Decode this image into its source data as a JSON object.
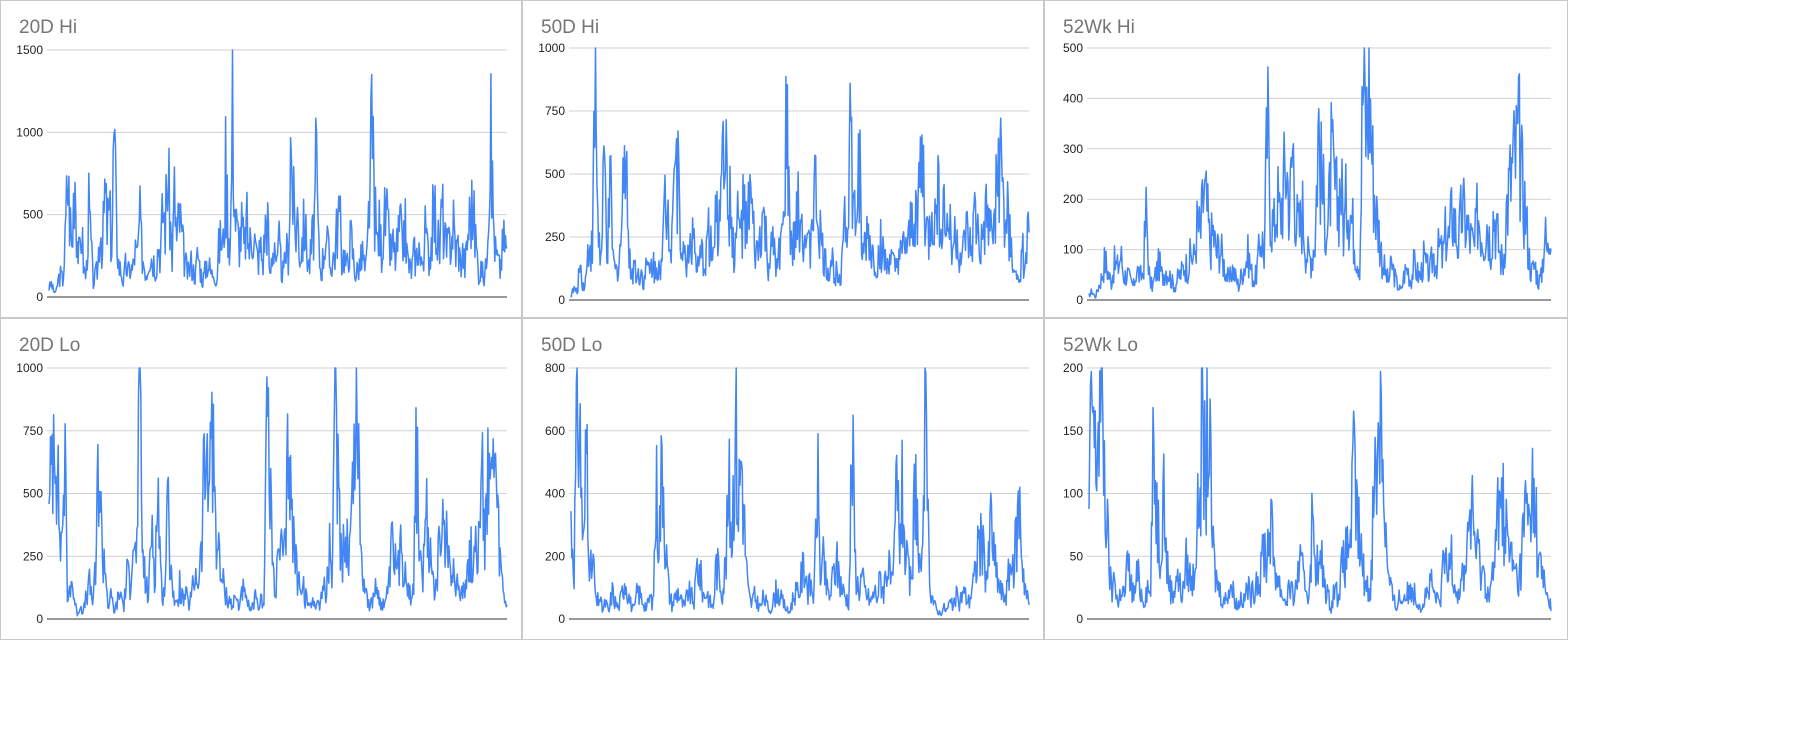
{
  "colors": {
    "series": "#4285f4",
    "grid": "#d0d0d0",
    "axis": "#333333",
    "title": "#757575"
  },
  "chart_data": [
    {
      "type": "line",
      "title": "20D Hi",
      "ylim": [
        0,
        1500
      ],
      "yticks": [
        0,
        500,
        1000,
        1500
      ],
      "grid": true,
      "n_points": 600,
      "series": [
        {
          "values": [
            60,
            90,
            40,
            30,
            120,
            150,
            110,
            380,
            820,
            540,
            300,
            980,
            420,
            250,
            480,
            180,
            140,
            600,
            380,
            90,
            140,
            200,
            520,
            300,
            700,
            480,
            560,
            350,
            1120,
            480,
            210,
            180,
            90,
            220,
            160,
            200,
            180,
            320,
            250,
            540,
            300,
            220,
            160,
            300,
            280,
            250,
            200,
            360,
            300,
            600,
            500,
            860,
            560,
            260,
            700,
            350,
            560,
            420,
            280,
            200,
            150,
            240,
            180,
            150,
            300,
            200,
            110,
            160,
            250,
            200,
            150,
            200,
            90,
            320,
            400,
            350,
            880,
            520,
            320,
            1330,
            560,
            420,
            380,
            480,
            300,
            520,
            320,
            400,
            480,
            300,
            260,
            340,
            220,
            480,
            550,
            120,
            300,
            400,
            200,
            350,
            180,
            160,
            320,
            280,
            1080,
            650,
            420,
            560,
            260,
            400,
            500,
            300,
            200,
            350,
            480,
            900,
            320,
            160,
            280,
            450,
            320,
            200,
            260,
            300,
            500,
            560,
            250,
            300,
            180,
            350,
            400,
            250,
            150,
            200,
            230,
            300,
            150,
            300,
            800,
            1100,
            640,
            350,
            480,
            320,
            480,
            560,
            400,
            300,
            340,
            260,
            360,
            480,
            300,
            520,
            280,
            200,
            180,
            300,
            250,
            400,
            180,
            320,
            450,
            280,
            300,
            500,
            560,
            400,
            300,
            620,
            420,
            300,
            350,
            400,
            500,
            300,
            360,
            220,
            300,
            200,
            400,
            550,
            600,
            480,
            300,
            140,
            200,
            120,
            200,
            760,
            1050,
            600,
            300,
            250,
            180,
            320,
            400,
            300
          ]
        }
      ]
    },
    {
      "type": "line",
      "title": "50D Hi",
      "ylim": [
        0,
        1000
      ],
      "yticks": [
        0,
        250,
        500,
        750,
        1000
      ],
      "grid": true,
      "n_points": 600,
      "series": [
        {
          "values": [
            20,
            50,
            30,
            170,
            60,
            100,
            280,
            200,
            940,
            300,
            150,
            600,
            200,
            480,
            150,
            120,
            200,
            380,
            950,
            180,
            120,
            160,
            100,
            130,
            80,
            150,
            120,
            180,
            100,
            200,
            150,
            420,
            380,
            300,
            660,
            550,
            400,
            200,
            150,
            250,
            300,
            180,
            120,
            200,
            150,
            300,
            250,
            180,
            380,
            300,
            1000,
            550,
            480,
            300,
            200,
            350,
            300,
            400,
            250,
            470,
            300,
            180,
            230,
            350,
            300,
            140,
            200,
            230,
            100,
            300,
            250,
            800,
            350,
            200,
            280,
            400,
            350,
            300,
            200,
            250,
            500,
            420,
            300,
            200,
            150,
            120,
            180,
            100,
            150,
            120,
            400,
            300,
            780,
            400,
            300,
            650,
            150,
            250,
            300,
            200,
            180,
            140,
            250,
            200,
            120,
            200,
            150,
            120,
            200,
            170,
            250,
            200,
            300,
            350,
            400,
            500,
            580,
            300,
            250,
            400,
            300,
            500,
            350,
            400,
            280,
            350,
            230,
            300,
            200,
            150,
            300,
            250,
            200,
            350,
            300,
            200,
            280,
            350,
            300,
            250,
            480,
            560,
            540,
            280,
            400,
            200,
            150,
            80,
            100,
            200,
            160,
            350
          ]
        }
      ]
    },
    {
      "type": "line",
      "title": "52Wk Hi",
      "ylim": [
        0,
        500
      ],
      "yticks": [
        0,
        100,
        200,
        300,
        400,
        500
      ],
      "grid": true,
      "n_points": 600,
      "series": [
        {
          "values": [
            10,
            20,
            5,
            30,
            50,
            90,
            60,
            40,
            80,
            70,
            100,
            50,
            60,
            40,
            30,
            70,
            50,
            60,
            200,
            40,
            30,
            60,
            80,
            50,
            70,
            60,
            40,
            30,
            50,
            60,
            80,
            70,
            100,
            90,
            170,
            140,
            240,
            200,
            120,
            150,
            100,
            120,
            90,
            60,
            40,
            70,
            50,
            30,
            60,
            80,
            100,
            60,
            40,
            80,
            150,
            100,
            400,
            200,
            150,
            230,
            180,
            250,
            300,
            200,
            350,
            180,
            150,
            200,
            120,
            90,
            100,
            140,
            400,
            250,
            200,
            150,
            300,
            250,
            200,
            270,
            150,
            240,
            200,
            150,
            100,
            80,
            500,
            380,
            480,
            300,
            200,
            150,
            90,
            60,
            40,
            80,
            50,
            30,
            20,
            60,
            70,
            40,
            80,
            60,
            50,
            90,
            70,
            60,
            100,
            80,
            120,
            90,
            150,
            130,
            200,
            160,
            120,
            200,
            180,
            150,
            130,
            110,
            200,
            160,
            140,
            180,
            120,
            200,
            150,
            100,
            80,
            200,
            250,
            300,
            320,
            350,
            250,
            200,
            100,
            60,
            80,
            40,
            50,
            150,
            100,
            200
          ]
        }
      ]
    },
    {
      "type": "line",
      "title": "20D Lo",
      "ylim": [
        0,
        1000
      ],
      "yticks": [
        0,
        250,
        500,
        750,
        1000
      ],
      "grid": true,
      "n_points": 600,
      "series": [
        {
          "values": [
            400,
            760,
            1000,
            500,
            300,
            740,
            50,
            200,
            100,
            20,
            60,
            30,
            100,
            150,
            80,
            200,
            770,
            300,
            250,
            50,
            100,
            30,
            80,
            120,
            50,
            200,
            150,
            450,
            200,
            1000,
            300,
            150,
            100,
            450,
            200,
            580,
            150,
            100,
            480,
            300,
            100,
            50,
            150,
            80,
            100,
            60,
            120,
            200,
            180,
            300,
            750,
            500,
            940,
            600,
            350,
            200,
            150,
            100,
            80,
            60,
            100,
            50,
            150,
            80,
            60,
            30,
            100,
            50,
            80,
            100,
            1000,
            500,
            200,
            150,
            350,
            250,
            300,
            920,
            400,
            300,
            150,
            200,
            100,
            80,
            50,
            100,
            60,
            80,
            150,
            100,
            300,
            200,
            1000,
            500,
            300,
            400,
            300,
            400,
            800,
            1000,
            300,
            200,
            100,
            50,
            80,
            150,
            100,
            60,
            80,
            120,
            300,
            250,
            200,
            300,
            250,
            200,
            100,
            150,
            760,
            300,
            150,
            450,
            300,
            200,
            150,
            250,
            400,
            350,
            300,
            250,
            200,
            150,
            100,
            200,
            150,
            300,
            250,
            400,
            300,
            600,
            400,
            790,
            500,
            700,
            400,
            200,
            100,
            50
          ]
        }
      ]
    },
    {
      "type": "line",
      "title": "50D Lo",
      "ylim": [
        0,
        800
      ],
      "yticks": [
        0,
        200,
        400,
        600,
        800
      ],
      "grid": true,
      "n_points": 600,
      "series": [
        {
          "values": [
            340,
            200,
            800,
            600,
            200,
            710,
            150,
            200,
            50,
            80,
            30,
            60,
            20,
            100,
            60,
            40,
            80,
            150,
            100,
            50,
            30,
            100,
            80,
            60,
            40,
            80,
            50,
            460,
            300,
            620,
            250,
            100,
            50,
            80,
            100,
            60,
            40,
            100,
            80,
            60,
            200,
            150,
            80,
            100,
            60,
            40,
            200,
            150,
            100,
            200,
            450,
            300,
            730,
            400,
            600,
            300,
            100,
            50,
            80,
            60,
            40,
            80,
            50,
            30,
            60,
            100,
            80,
            60,
            40,
            20,
            60,
            100,
            80,
            150,
            200,
            100,
            120,
            80,
            520,
            150,
            200,
            100,
            80,
            150,
            200,
            150,
            100,
            80,
            60,
            650,
            200,
            100,
            150,
            100,
            80,
            60,
            100,
            80,
            150,
            100,
            200,
            150,
            100,
            470,
            300,
            450,
            200,
            150,
            100,
            590,
            200,
            100,
            800,
            300,
            100,
            50,
            30,
            20,
            40,
            30,
            60,
            40,
            80,
            50,
            100,
            80,
            60,
            120,
            150,
            300,
            250,
            200,
            150,
            380,
            200,
            150,
            100,
            80,
            100,
            200,
            150,
            300,
            420,
            200,
            100,
            50
          ]
        }
      ]
    },
    {
      "type": "line",
      "title": "52Wk Lo",
      "ylim": [
        0,
        200
      ],
      "yticks": [
        0,
        50,
        100,
        150,
        200
      ],
      "grid": true,
      "n_points": 600,
      "series": [
        {
          "values": [
            100,
            200,
            130,
            180,
            200,
            110,
            60,
            20,
            40,
            10,
            30,
            20,
            50,
            30,
            20,
            40,
            25,
            15,
            30,
            20,
            150,
            100,
            60,
            130,
            50,
            30,
            20,
            40,
            30,
            20,
            50,
            40,
            30,
            60,
            100,
            175,
            120,
            180,
            80,
            40,
            30,
            20,
            15,
            25,
            30,
            20,
            10,
            20,
            15,
            30,
            20,
            25,
            40,
            30,
            70,
            50,
            90,
            60,
            40,
            30,
            20,
            15,
            30,
            20,
            25,
            50,
            40,
            30,
            20,
            80,
            60,
            40,
            50,
            30,
            20,
            10,
            30,
            20,
            40,
            50,
            60,
            80,
            130,
            90,
            60,
            40,
            30,
            20,
            100,
            140,
            200,
            150,
            60,
            30,
            20,
            10,
            20,
            15,
            25,
            20,
            30,
            20,
            15,
            10,
            20,
            25,
            30,
            20,
            15,
            20,
            60,
            30,
            70,
            40,
            20,
            30,
            40,
            60,
            100,
            80,
            60,
            50,
            40,
            30,
            20,
            40,
            60,
            130,
            100,
            80,
            60,
            50,
            40,
            30,
            60,
            100,
            80,
            120,
            100,
            60,
            40,
            30,
            20,
            10
          ]
        }
      ]
    }
  ]
}
